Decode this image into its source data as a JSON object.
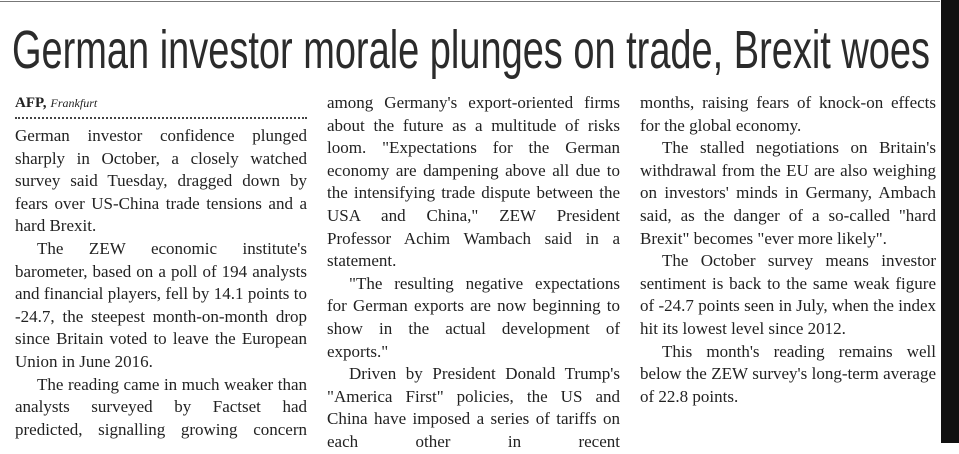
{
  "headline": "German investor morale plunges on trade, Brexit woes",
  "byline": {
    "agency": "AFP,",
    "location": "Frankfurt"
  },
  "columns": [
    {
      "paragraphs": [
        "German investor confidence plunged sharply in October, a closely watched survey said Tuesday, dragged down by fears over US-China trade tensions and a hard Brexit.",
        "The ZEW economic institute's barometer, based on a poll of 194 analysts and financial players, fell by 14.1 points to -24.7, the steepest month-on-month drop since Britain voted to leave the European Union in June 2016.",
        "The reading came in much weaker than analysts surveyed by Factset had predicted, signalling growing concern"
      ]
    },
    {
      "paragraphs": [
        "among Germany's export-oriented firms about the future as a multitude of risks loom. \"Expectations for the German economy are dampening above all due to the intensifying trade dispute between the USA and China,\" ZEW President Professor Achim Wambach said in a statement.",
        "\"The resulting negative expectations for German exports are now beginning to show in the actual development of exports.\"",
        "Driven by President Donald Trump's \"America First\" policies, the US and China have imposed a series of tariffs on each other in recent"
      ]
    },
    {
      "paragraphs": [
        "months, raising fears of knock-on effects for the global economy.",
        "The stalled negotiations on Britain's withdrawal from the EU are also weighing on investors' minds in Germany, Ambach said, as the danger of a so-called \"hard Brexit\" becomes \"ever more likely\".",
        "The October survey means investor sentiment is back to the same weak figure of -24.7 points seen in July, when the index hit its lowest level since 2012.",
        "This month's reading remains well below the ZEW survey's long-term average of 22.8 points."
      ]
    }
  ]
}
